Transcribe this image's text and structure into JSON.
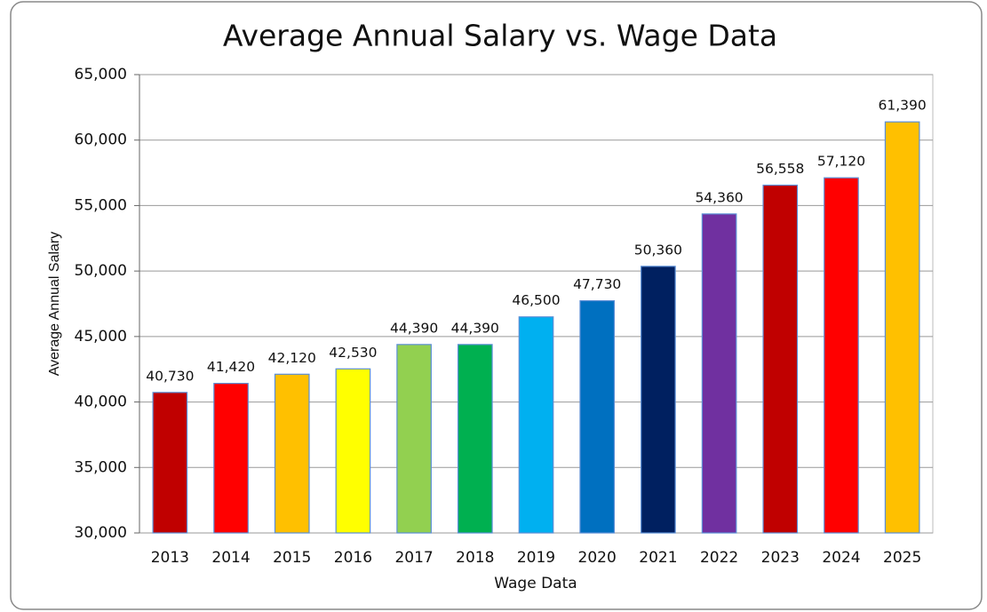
{
  "chart_data": {
    "type": "bar",
    "title": "Average Annual Salary vs. Wage Data",
    "x_label": "Wage Data",
    "y_label": "Average Annual Salary",
    "categories": [
      "2013",
      "2014",
      "2015",
      "2016",
      "2017",
      "2018",
      "2019",
      "2020",
      "2021",
      "2022",
      "2023",
      "2024",
      "2025"
    ],
    "values": [
      40730,
      41420,
      42120,
      42530,
      44390,
      44390,
      46500,
      47730,
      50360,
      54360,
      56558,
      57120,
      61390
    ],
    "value_labels": [
      "40,730",
      "41,420",
      "42,120",
      "42,530",
      "44,390",
      "44,390",
      "46,500",
      "47,730",
      "50,360",
      "54,360",
      "56,558",
      "57,120",
      "61,390"
    ],
    "colors": [
      "#c00000",
      "#ff0000",
      "#ffc000",
      "#ffff00",
      "#92d050",
      "#00b050",
      "#00b0f0",
      "#0070c0",
      "#002060",
      "#7030a0",
      "#c00000",
      "#ff0000",
      "#ffc000"
    ],
    "ylim": [
      30000,
      65000
    ],
    "yticks": [
      {
        "value": 30000,
        "label": "30,000"
      },
      {
        "value": 35000,
        "label": "35,000"
      },
      {
        "value": 40000,
        "label": "40,000"
      },
      {
        "value": 45000,
        "label": "45,000"
      },
      {
        "value": 50000,
        "label": "50,000"
      },
      {
        "value": 55000,
        "label": "55,000"
      },
      {
        "value": 60000,
        "label": "60,000"
      },
      {
        "value": 65000,
        "label": "65,000"
      }
    ],
    "grid": true
  }
}
